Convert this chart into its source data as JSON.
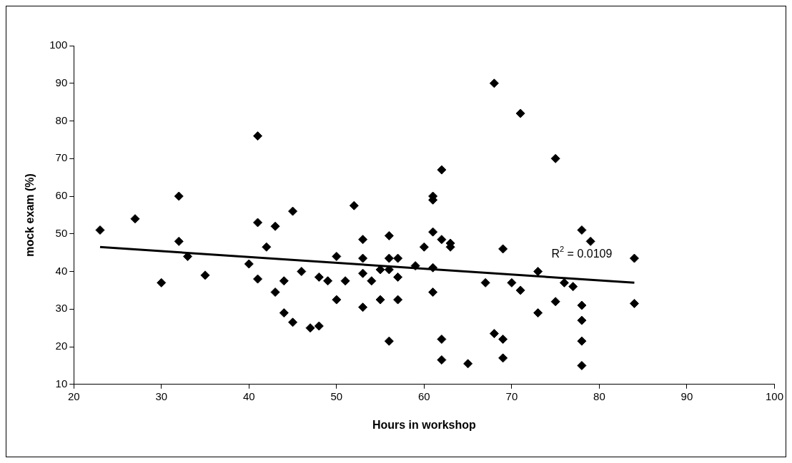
{
  "chart_data": {
    "type": "scatter",
    "xlabel": "Hours in workshop",
    "ylabel": "mock exam (%)",
    "xlim": [
      20,
      100
    ],
    "xticks": [
      20,
      30,
      40,
      50,
      60,
      70,
      80,
      90,
      100
    ],
    "ylim": [
      10,
      100
    ],
    "yticks": [
      10,
      20,
      30,
      40,
      50,
      60,
      70,
      80,
      90,
      100
    ],
    "grid": false,
    "legend": false,
    "marker": "diamond",
    "series": [
      {
        "type": "scatter",
        "color": "#000000",
        "x": [
          23,
          27,
          30,
          32,
          32,
          33,
          35,
          40,
          41,
          41,
          41,
          42,
          43,
          43,
          44,
          44,
          45,
          45,
          46,
          47,
          48,
          48,
          49,
          50,
          50,
          51,
          52,
          53,
          53,
          53,
          53,
          54,
          55,
          55,
          56,
          56,
          56,
          56,
          57,
          57,
          57,
          59,
          60,
          61,
          61,
          61,
          61,
          61,
          62,
          62,
          62,
          62,
          63,
          63,
          65,
          67,
          68,
          68,
          69,
          69,
          69,
          70,
          71,
          71,
          73,
          73,
          75,
          75,
          76,
          77,
          78,
          78,
          78,
          78,
          78,
          79,
          84,
          84
        ],
        "values": [
          51,
          54,
          37,
          60,
          48,
          44,
          39,
          42,
          76,
          53,
          38,
          46.5,
          52,
          34.5,
          37.5,
          29,
          56,
          26.5,
          40,
          25,
          25.5,
          38.5,
          37.5,
          44,
          32.5,
          37.5,
          57.5,
          48.5,
          43.5,
          39.5,
          30.5,
          37.5,
          32.5,
          40.5,
          49.5,
          43.5,
          40.5,
          21.5,
          43.5,
          38.5,
          32.5,
          41.5,
          46.5,
          60,
          59,
          50.5,
          41,
          34.5,
          67,
          48.5,
          22,
          16.5,
          47.5,
          46.5,
          15.5,
          37,
          90,
          23.5,
          46,
          22,
          17,
          37,
          82,
          35,
          40,
          29,
          70,
          32,
          37,
          36,
          51,
          31,
          27,
          21.5,
          15,
          48,
          43.5,
          31.5
        ]
      },
      {
        "type": "line",
        "color": "#000000",
        "marker": "none",
        "x": [
          23,
          84
        ],
        "values": [
          46.5,
          37
        ]
      }
    ],
    "annotations": [
      "R$^{2}$ = 0.0109"
    ]
  }
}
